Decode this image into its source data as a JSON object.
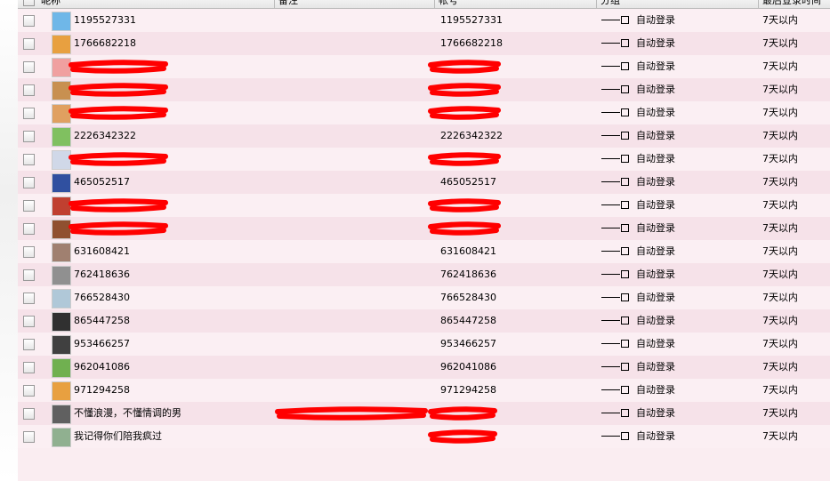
{
  "table": {
    "headers": [
      "昵称",
      "备注",
      "帐号",
      "分组",
      "最后登录时间"
    ],
    "rows": [
      {
        "nickname": "1195527331",
        "account": "1195527331",
        "group": "自动登录",
        "time": "7天以内"
      },
      {
        "nickname": "1766682218",
        "account": "1766682218",
        "group": "自动登录",
        "time": "7天以内"
      },
      {
        "nickname": null,
        "account": null,
        "group": "自动登录",
        "time": "7天以内"
      },
      {
        "nickname": null,
        "account": null,
        "group": "自动登录",
        "time": "7天以内"
      },
      {
        "nickname": null,
        "account": null,
        "group": "自动登录",
        "time": "7天以内"
      },
      {
        "nickname": "2226342322",
        "account": "2226342322",
        "group": "自动登录",
        "time": "7天以内"
      },
      {
        "nickname": null,
        "account": null,
        "group": "自动登录",
        "time": "7天以内"
      },
      {
        "nickname": "465052517",
        "account": "465052517",
        "group": "自动登录",
        "time": "7天以内"
      },
      {
        "nickname": null,
        "account": null,
        "group": "自动登录",
        "time": "7天以内"
      },
      {
        "nickname": null,
        "account": null,
        "group": "自动登录",
        "time": "7天以内"
      },
      {
        "nickname": "631608421",
        "account": "631608421",
        "group": "自动登录",
        "time": "7天以内"
      },
      {
        "nickname": "762418636",
        "account": "762418636",
        "group": "自动登录",
        "time": "7天以内"
      },
      {
        "nickname": "766528430",
        "account": "766528430",
        "group": "自动登录",
        "time": "7天以内"
      },
      {
        "nickname": "865447258",
        "account": "865447258",
        "group": "自动登录",
        "time": "7天以内"
      },
      {
        "nickname": "953466257",
        "account": "953466257",
        "group": "自动登录",
        "time": "7天以内"
      },
      {
        "nickname": "962041086",
        "account": "962041086",
        "group": "自动登录",
        "time": "7天以内"
      },
      {
        "nickname": "971294258",
        "account": "971294258",
        "group": "自动登录",
        "time": "7天以内"
      },
      {
        "nickname": "不懂浪漫，不懂情调的男",
        "account": null,
        "group": "自动登录",
        "time": "7天以内"
      },
      {
        "nickname": "我记得你们陪我疯过",
        "account": null,
        "group": "自动登录",
        "time": "7天以内"
      }
    ]
  }
}
